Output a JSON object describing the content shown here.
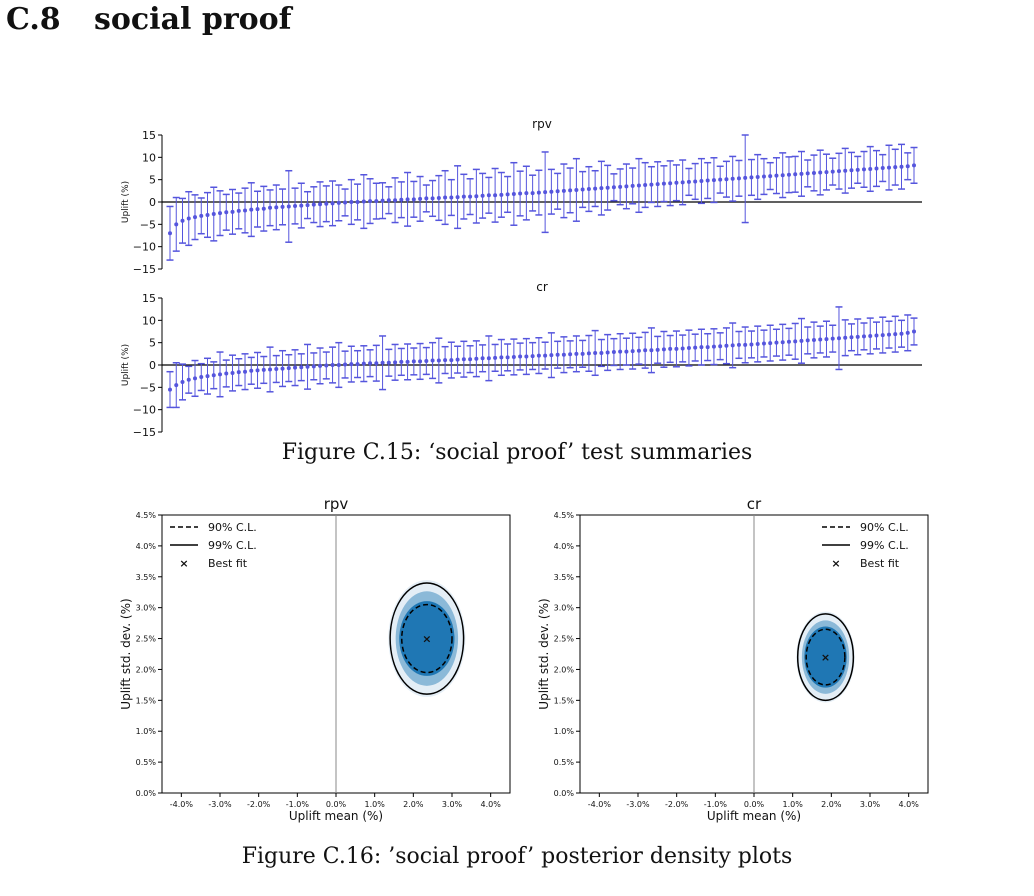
{
  "section": {
    "number": "C.8",
    "title": "social proof"
  },
  "figure_c15_caption": "Figure C.15: ‘social proof’ test summaries",
  "figure_c16_caption": "Figure C.16: ’social proof’ posterior density plots",
  "colors": {
    "errorbar": "#5555dd",
    "density": "#1f77b4",
    "axis": "#000000",
    "zeroline": "#888888"
  },
  "chart_data": [
    {
      "type": "errorbar",
      "title": "rpv",
      "ylabel": "Uplift (%)",
      "ylim": [
        -15,
        15
      ],
      "yticks": [
        -15,
        -10,
        -5,
        0,
        5,
        10,
        15
      ],
      "n_tests": 120,
      "x": [
        1,
        2,
        3,
        4,
        5,
        6,
        7,
        8,
        9,
        10,
        11,
        12,
        13,
        14,
        15,
        16,
        17,
        18,
        19,
        20,
        21,
        22,
        23,
        24,
        25,
        26,
        27,
        28,
        29,
        30,
        31,
        32,
        33,
        34,
        35,
        36,
        37,
        38,
        39,
        40,
        41,
        42,
        43,
        44,
        45,
        46,
        47,
        48,
        49,
        50,
        51,
        52,
        53,
        54,
        55,
        56,
        57,
        58,
        59,
        60,
        61,
        62,
        63,
        64,
        65,
        66,
        67,
        68,
        69,
        70,
        71,
        72,
        73,
        74,
        75,
        76,
        77,
        78,
        79,
        80,
        81,
        82,
        83,
        84,
        85,
        86,
        87,
        88,
        89,
        90,
        91,
        92,
        93,
        94,
        95,
        96,
        97,
        98,
        99,
        100,
        101,
        102,
        103,
        104,
        105,
        106,
        107,
        108,
        109,
        110,
        111,
        112,
        113,
        114,
        115,
        116,
        117,
        118,
        119,
        120
      ],
      "mean": [
        -7,
        -5,
        -4.2,
        -3.7,
        -3.4,
        -3.1,
        -2.9,
        -2.7,
        -2.5,
        -2.3,
        -2.2,
        -2,
        -1.9,
        -1.7,
        -1.6,
        -1.5,
        -1.3,
        -1.2,
        -1.1,
        -1,
        -0.9,
        -0.8,
        -0.7,
        -0.6,
        -0.5,
        -0.4,
        -0.3,
        -0.2,
        -0.1,
        0,
        0,
        0.1,
        0.2,
        0.2,
        0.3,
        0.4,
        0.4,
        0.5,
        0.6,
        0.6,
        0.7,
        0.8,
        0.8,
        0.9,
        1,
        1,
        1.1,
        1.2,
        1.2,
        1.3,
        1.4,
        1.5,
        1.5,
        1.6,
        1.7,
        1.8,
        1.9,
        2,
        2,
        2.1,
        2.2,
        2.3,
        2.4,
        2.5,
        2.6,
        2.7,
        2.8,
        2.9,
        3,
        3.1,
        3.2,
        3.3,
        3.4,
        3.5,
        3.6,
        3.7,
        3.8,
        3.9,
        4,
        4.1,
        4.2,
        4.3,
        4.4,
        4.5,
        4.6,
        4.7,
        4.8,
        4.9,
        5,
        5.1,
        5.2,
        5.3,
        5.4,
        5.5,
        5.6,
        5.7,
        5.8,
        5.9,
        6,
        6.1,
        6.2,
        6.3,
        6.4,
        6.5,
        6.6,
        6.7,
        6.8,
        6.9,
        7,
        7.1,
        7.2,
        7.3,
        7.4,
        7.5,
        7.6,
        7.7,
        7.8,
        7.9,
        8,
        8.2
      ],
      "halfwidth": [
        6,
        6,
        5,
        6,
        5,
        4,
        5,
        6,
        5,
        4,
        5,
        4,
        5,
        6,
        4,
        5,
        4,
        5,
        4,
        8,
        4,
        5,
        3,
        4,
        5,
        4,
        5,
        4,
        3,
        5,
        4,
        6,
        5,
        4,
        4,
        3,
        5,
        4,
        6,
        4,
        5,
        3,
        4,
        5,
        6,
        4,
        7,
        5,
        4,
        6,
        5,
        4,
        6,
        5,
        4,
        7,
        5,
        6,
        4,
        5,
        9,
        5,
        4,
        6,
        5,
        7,
        4,
        5,
        4,
        6,
        5,
        3,
        4,
        5,
        4,
        6,
        5,
        4,
        5,
        4,
        5,
        4,
        5,
        3,
        4,
        5,
        4,
        5,
        3,
        4,
        5,
        4,
        10,
        4,
        5,
        4,
        3,
        4,
        5,
        4,
        4,
        5,
        3,
        4,
        5,
        4,
        3,
        4,
        5,
        4,
        3,
        4,
        5,
        4,
        3,
        5,
        4,
        5,
        3,
        4
      ],
      "xaxis_line": true
    },
    {
      "type": "errorbar",
      "title": "cr",
      "ylabel": "Uplift (%)",
      "ylim": [
        -15,
        15
      ],
      "yticks": [
        -15,
        -10,
        -5,
        0,
        5,
        10,
        15
      ],
      "n_tests": 120,
      "x": [
        1,
        2,
        3,
        4,
        5,
        6,
        7,
        8,
        9,
        10,
        11,
        12,
        13,
        14,
        15,
        16,
        17,
        18,
        19,
        20,
        21,
        22,
        23,
        24,
        25,
        26,
        27,
        28,
        29,
        30,
        31,
        32,
        33,
        34,
        35,
        36,
        37,
        38,
        39,
        40,
        41,
        42,
        43,
        44,
        45,
        46,
        47,
        48,
        49,
        50,
        51,
        52,
        53,
        54,
        55,
        56,
        57,
        58,
        59,
        60,
        61,
        62,
        63,
        64,
        65,
        66,
        67,
        68,
        69,
        70,
        71,
        72,
        73,
        74,
        75,
        76,
        77,
        78,
        79,
        80,
        81,
        82,
        83,
        84,
        85,
        86,
        87,
        88,
        89,
        90,
        91,
        92,
        93,
        94,
        95,
        96,
        97,
        98,
        99,
        100,
        101,
        102,
        103,
        104,
        105,
        106,
        107,
        108,
        109,
        110,
        111,
        112,
        113,
        114,
        115,
        116,
        117,
        118,
        119,
        120
      ],
      "mean": [
        -5.5,
        -4.5,
        -3.8,
        -3.3,
        -3,
        -2.7,
        -2.5,
        -2.3,
        -2.1,
        -1.9,
        -1.8,
        -1.6,
        -1.5,
        -1.3,
        -1.2,
        -1.1,
        -1,
        -0.9,
        -0.8,
        -0.7,
        -0.6,
        -0.5,
        -0.4,
        -0.3,
        -0.2,
        -0.1,
        0,
        0,
        0.1,
        0.2,
        0.2,
        0.3,
        0.4,
        0.4,
        0.5,
        0.5,
        0.6,
        0.7,
        0.7,
        0.8,
        0.8,
        0.9,
        1,
        1,
        1.1,
        1.1,
        1.2,
        1.3,
        1.3,
        1.4,
        1.5,
        1.5,
        1.6,
        1.7,
        1.7,
        1.8,
        1.9,
        1.9,
        2,
        2.1,
        2.1,
        2.2,
        2.3,
        2.3,
        2.4,
        2.5,
        2.5,
        2.6,
        2.7,
        2.7,
        2.8,
        2.9,
        3,
        3,
        3.1,
        3.2,
        3.3,
        3.3,
        3.4,
        3.5,
        3.6,
        3.6,
        3.7,
        3.8,
        3.9,
        4,
        4,
        4.1,
        4.2,
        4.3,
        4.4,
        4.5,
        4.5,
        4.6,
        4.7,
        4.8,
        4.9,
        5,
        5.1,
        5.2,
        5.3,
        5.4,
        5.5,
        5.6,
        5.7,
        5.8,
        5.9,
        6,
        6.1,
        6.2,
        6.3,
        6.4,
        6.5,
        6.6,
        6.7,
        6.8,
        6.9,
        7,
        7.2,
        7.5
      ],
      "halfwidth": [
        4,
        5,
        4,
        3,
        4,
        3,
        4,
        3,
        5,
        3,
        4,
        3,
        4,
        3,
        4,
        3,
        5,
        3,
        4,
        3,
        4,
        3,
        5,
        3,
        4,
        3,
        4,
        5,
        3,
        4,
        3,
        4,
        3,
        4,
        6,
        3,
        4,
        3,
        4,
        3,
        4,
        3,
        4,
        5,
        3,
        4,
        3,
        4,
        3,
        4,
        3,
        5,
        3,
        4,
        3,
        4,
        3,
        4,
        3,
        4,
        3,
        5,
        3,
        4,
        3,
        4,
        3,
        4,
        5,
        3,
        4,
        3,
        4,
        3,
        4,
        3,
        4,
        5,
        3,
        4,
        3,
        4,
        3,
        4,
        3,
        4,
        3,
        4,
        3,
        4,
        5,
        3,
        4,
        3,
        4,
        3,
        4,
        3,
        4,
        3,
        4,
        5,
        3,
        4,
        3,
        4,
        3,
        7,
        4,
        3,
        4,
        3,
        4,
        3,
        4,
        3,
        4,
        3,
        4,
        3
      ],
      "xaxis_line": true
    },
    {
      "type": "scatter",
      "title": "rpv",
      "xlabel": "Uplift mean (%)",
      "ylabel": "Uplift std. dev. (%)",
      "xlim": [
        -4.5,
        4.5
      ],
      "ylim": [
        0,
        4.5
      ],
      "xticks": [
        "-4.0%",
        "-3.0%",
        "-2.0%",
        "-1.0%",
        "0.0%",
        "1.0%",
        "2.0%",
        "3.0%",
        "4.0%"
      ],
      "xtick_values": [
        -4,
        -3,
        -2,
        -1,
        0,
        1,
        2,
        3,
        4
      ],
      "yticks": [
        "0.0%",
        "0.5%",
        "1.0%",
        "1.5%",
        "2.0%",
        "2.5%",
        "3.0%",
        "3.5%",
        "4.0%",
        "4.5%"
      ],
      "ytick_values": [
        0,
        0.5,
        1,
        1.5,
        2,
        2.5,
        3,
        3.5,
        4,
        4.5
      ],
      "best_fit": [
        2.35,
        2.5
      ],
      "ci90": {
        "cx": 2.35,
        "cy": 2.5,
        "rx": 0.65,
        "ry": 0.55
      },
      "ci99": {
        "cx": 2.35,
        "cy": 2.5,
        "rx": 0.95,
        "ry": 0.9
      },
      "legend": [
        "90% C.L.",
        "99% C.L.",
        "Best fit"
      ],
      "legend_loc": "upper left"
    },
    {
      "type": "scatter",
      "title": "cr",
      "xlabel": "Uplift mean (%)",
      "ylabel": "Uplift std. dev. (%)",
      "xlim": [
        -4.5,
        4.5
      ],
      "ylim": [
        0,
        4.5
      ],
      "xticks": [
        "-4.0%",
        "-3.0%",
        "-2.0%",
        "-1.0%",
        "0.0%",
        "1.0%",
        "2.0%",
        "3.0%",
        "4.0%"
      ],
      "xtick_values": [
        -4,
        -3,
        -2,
        -1,
        0,
        1,
        2,
        3,
        4
      ],
      "yticks": [
        "0.0%",
        "0.5%",
        "1.0%",
        "1.5%",
        "2.0%",
        "2.5%",
        "3.0%",
        "3.5%",
        "4.0%",
        "4.5%"
      ],
      "ytick_values": [
        0,
        0.5,
        1,
        1.5,
        2,
        2.5,
        3,
        3.5,
        4,
        4.5
      ],
      "best_fit": [
        1.85,
        2.2
      ],
      "ci90": {
        "cx": 1.85,
        "cy": 2.2,
        "rx": 0.5,
        "ry": 0.45
      },
      "ci99": {
        "cx": 1.85,
        "cy": 2.2,
        "rx": 0.72,
        "ry": 0.7
      },
      "legend": [
        "90% C.L.",
        "99% C.L.",
        "Best fit"
      ],
      "legend_loc": "upper right"
    }
  ]
}
